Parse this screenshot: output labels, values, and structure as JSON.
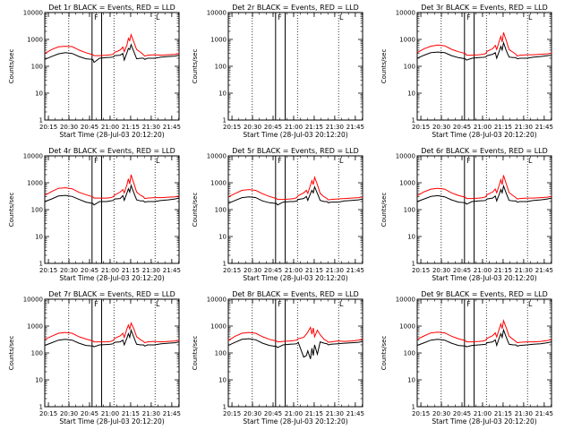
{
  "chart_data": {
    "type": "line",
    "grid_layout": "3x3",
    "ylabel": "Counts/sec",
    "xlabel": "Start Time (28-Jul-03 20:12:20)",
    "y_scale": "log",
    "ylim": [
      1,
      10000
    ],
    "y_ticks": [
      1,
      10,
      100,
      1000,
      10000
    ],
    "y_tick_labels": [
      "1",
      "10",
      "100",
      "1000",
      "10000"
    ],
    "xlim_minutes": [
      0,
      98
    ],
    "x_ticks_minutes": [
      2.67,
      17.67,
      32.67,
      47.67,
      62.67,
      77.67,
      92.67
    ],
    "x_tick_labels": [
      "20:15",
      "20:30",
      "20:45",
      "21:00",
      "21:15",
      "21:30",
      "21:45"
    ],
    "series_names": [
      "Events",
      "LLD"
    ],
    "series_colors": {
      "Events": "#000000",
      "LLD": "#ff0000"
    },
    "markers": {
      "dotted_lines_minutes": [
        17.5,
        50.5,
        80.5
      ],
      "solid_lines_minutes": [
        34.5,
        41.5
      ],
      "flag_labels": [
        {
          "minute": 37.5,
          "text": "F"
        },
        {
          "minute": 82.5,
          "text": "L"
        }
      ]
    },
    "time_minutes": [
      0,
      5,
      10,
      15,
      20,
      25,
      30,
      35,
      36,
      40,
      45,
      48,
      50,
      51,
      55,
      57,
      58,
      60,
      61,
      62,
      63,
      65,
      67,
      70,
      72,
      73,
      75,
      80,
      85,
      90,
      95,
      98
    ],
    "panels": [
      {
        "title": "Det 1r BLACK = Events, RED = LLD",
        "series": [
          {
            "name": "Events",
            "values": [
              180,
              230,
              290,
              320,
              300,
              230,
              190,
              180,
              140,
              200,
              210,
              215,
              220,
              250,
              260,
              300,
              170,
              320,
              460,
              420,
              640,
              350,
              190,
              200,
              200,
              180,
              200,
              200,
              220,
              230,
              240,
              260
            ]
          },
          {
            "name": "LLD",
            "values": [
              300,
              420,
              530,
              560,
              540,
              400,
              320,
              270,
              250,
              250,
              260,
              270,
              280,
              330,
              400,
              520,
              350,
              620,
              1100,
              900,
              1500,
              800,
              420,
              330,
              270,
              240,
              260,
              270,
              260,
              270,
              280,
              300
            ]
          }
        ]
      },
      {
        "title": "Det 2r BLACK = Events, RED = LLD",
        "series": []
      },
      {
        "title": "Det 3r BLACK = Events, RED = LLD",
        "series": [
          {
            "name": "Events",
            "values": [
              200,
              260,
              320,
              340,
              320,
              250,
              210,
              190,
              170,
              200,
              210,
              215,
              220,
              250,
              280,
              320,
              200,
              380,
              550,
              400,
              750,
              380,
              220,
              210,
              210,
              190,
              200,
              200,
              220,
              230,
              250,
              260
            ]
          },
          {
            "name": "LLD",
            "values": [
              320,
              450,
              560,
              620,
              580,
              430,
              350,
              300,
              260,
              260,
              270,
              280,
              300,
              360,
              450,
              600,
              420,
              900,
              1300,
              800,
              1800,
              900,
              420,
              330,
              280,
              240,
              260,
              270,
              270,
              280,
              290,
              310
            ]
          }
        ]
      },
      {
        "title": "Det 4r BLACK = Events, RED = LLD",
        "series": [
          {
            "name": "Events",
            "values": [
              200,
              250,
              320,
              340,
              310,
              240,
              190,
              170,
              150,
              200,
              200,
              210,
              220,
              250,
              260,
              330,
              220,
              420,
              600,
              450,
              800,
              420,
              230,
              210,
              210,
              190,
              200,
              200,
              220,
              230,
              250,
              270
            ]
          },
          {
            "name": "LLD",
            "values": [
              340,
              470,
              620,
              650,
              600,
              440,
              360,
              300,
              270,
              270,
              270,
              280,
              300,
              350,
              450,
              560,
              420,
              850,
              1400,
              900,
              2000,
              950,
              450,
              340,
              300,
              260,
              270,
              280,
              280,
              290,
              300,
              320
            ]
          }
        ]
      },
      {
        "title": "Det 5r BLACK = Events, RED = LLD",
        "series": [
          {
            "name": "Events",
            "values": [
              170,
              220,
              280,
              300,
              280,
              210,
              180,
              170,
              150,
              190,
              200,
              200,
              210,
              240,
              260,
              310,
              220,
              400,
              520,
              420,
              700,
              400,
              220,
              200,
              200,
              180,
              190,
              190,
              210,
              220,
              230,
              250
            ]
          },
          {
            "name": "LLD",
            "values": [
              300,
              400,
              520,
              560,
              520,
              390,
              310,
              260,
              240,
              240,
              250,
              260,
              280,
              330,
              420,
              520,
              400,
              820,
              1200,
              850,
              1600,
              850,
              400,
              300,
              260,
              230,
              240,
              250,
              260,
              270,
              280,
              300
            ]
          }
        ]
      },
      {
        "title": "Det 6r BLACK = Events, RED = LLD",
        "series": [
          {
            "name": "Events",
            "values": [
              200,
              250,
              310,
              330,
              300,
              230,
              190,
              180,
              160,
              200,
              210,
              215,
              220,
              250,
              270,
              320,
              210,
              390,
              560,
              420,
              760,
              400,
              220,
              210,
              210,
              190,
              200,
              200,
              220,
              230,
              250,
              270
            ]
          },
          {
            "name": "LLD",
            "values": [
              330,
              460,
              580,
              620,
              580,
              420,
              340,
              290,
              260,
              260,
              270,
              280,
              300,
              360,
              450,
              580,
              420,
              860,
              1300,
              850,
              1900,
              900,
              430,
              330,
              280,
              250,
              260,
              270,
              270,
              280,
              290,
              310
            ]
          }
        ]
      },
      {
        "title": "Det 7r BLACK = Events, RED = LLD",
        "series": [
          {
            "name": "Events",
            "values": [
              190,
              240,
              300,
              320,
              300,
              230,
              190,
              180,
              170,
              200,
              205,
              210,
              220,
              250,
              260,
              300,
              200,
              360,
              520,
              380,
              700,
              380,
              210,
              200,
              200,
              180,
              200,
              200,
              220,
              230,
              240,
              260
            ]
          },
          {
            "name": "LLD",
            "values": [
              320,
              420,
              540,
              580,
              540,
              400,
              330,
              280,
              260,
              260,
              260,
              270,
              290,
              350,
              430,
              540,
              380,
              800,
              1100,
              780,
              1300,
              800,
              400,
              310,
              270,
              240,
              260,
              270,
              260,
              270,
              280,
              300
            ]
          }
        ]
      },
      {
        "title": "Det 8r BLACK = Events, RED = LLD",
        "series": [
          {
            "name": "Events",
            "values": [
              190,
              250,
              320,
              340,
              310,
              230,
              190,
              175,
              160,
              200,
              210,
              215,
              220,
              250,
              70,
              80,
              120,
              60,
              150,
              80,
              200,
              90,
              260,
              230,
              220,
              200,
              210,
              220,
              230,
              240,
              250,
              270
            ]
          },
          {
            "name": "LLD",
            "values": [
              290,
              420,
              540,
              580,
              540,
              400,
              320,
              280,
              260,
              270,
              280,
              290,
              300,
              340,
              380,
              500,
              600,
              900,
              500,
              850,
              400,
              700,
              480,
              320,
              280,
              250,
              260,
              280,
              270,
              280,
              300,
              330
            ]
          }
        ]
      },
      {
        "title": "Det 9r BLACK = Events, RED = LLD",
        "series": [
          {
            "name": "Events",
            "values": [
              190,
              240,
              300,
              320,
              300,
              230,
              190,
              180,
              170,
              190,
              200,
              205,
              210,
              240,
              260,
              310,
              190,
              380,
              520,
              380,
              720,
              380,
              210,
              200,
              200,
              180,
              190,
              200,
              210,
              220,
              240,
              260
            ]
          },
          {
            "name": "LLD",
            "values": [
              320,
              430,
              560,
              600,
              560,
              420,
              340,
              290,
              260,
              260,
              270,
              280,
              300,
              350,
              440,
              560,
              390,
              820,
              1200,
              800,
              1600,
              850,
              420,
              320,
              270,
              240,
              250,
              260,
              260,
              270,
              290,
              320
            ]
          }
        ]
      }
    ]
  }
}
